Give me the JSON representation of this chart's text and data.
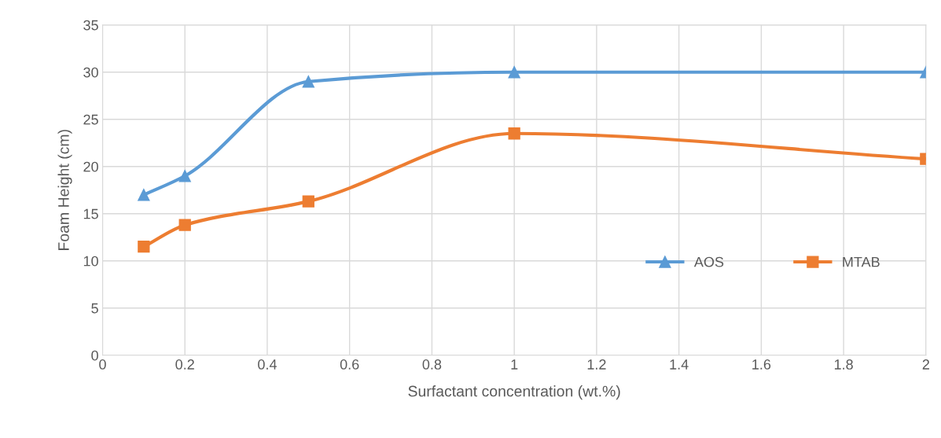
{
  "chart_data": {
    "type": "line",
    "xlabel": "Surfactant concentration (wt.%)",
    "ylabel": "Foam Height (cm)",
    "series": [
      {
        "name": "AOS",
        "color": "#5b9bd5",
        "marker": "triangle",
        "x": [
          0.1,
          0.2,
          0.5,
          1,
          2
        ],
        "values": [
          17,
          19,
          29,
          30,
          30
        ]
      },
      {
        "name": "MTAB",
        "color": "#ed7d31",
        "marker": "square",
        "x": [
          0.1,
          0.2,
          0.5,
          1,
          2
        ],
        "values": [
          11.5,
          13.8,
          16.3,
          23.5,
          20.8
        ]
      }
    ],
    "xlim": [
      0,
      2
    ],
    "xticks": [
      0,
      0.2,
      0.4,
      0.6,
      0.8,
      1,
      1.2,
      1.4,
      1.6,
      1.8,
      2
    ],
    "ylim": [
      0,
      35
    ],
    "yticks": [
      0,
      5,
      10,
      15,
      20,
      25,
      30,
      35
    ],
    "grid": true,
    "legend": "bottom right",
    "line_style": "solid"
  }
}
